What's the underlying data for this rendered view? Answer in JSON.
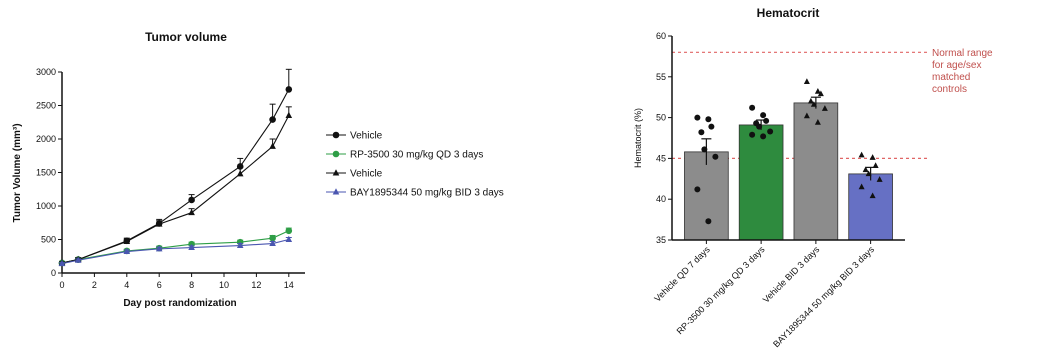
{
  "chart_data": [
    {
      "type": "line",
      "title": "Tumor volume",
      "xlabel": "Day post randomization",
      "ylabel": "Tumor Volume (mm³)",
      "xlim": [
        0,
        15
      ],
      "ylim": [
        0,
        3000
      ],
      "xticks": [
        "0",
        "2",
        "4",
        "6",
        "8",
        "10",
        "12",
        "14"
      ],
      "yticks": [
        "0",
        "500",
        "1000",
        "1500",
        "2000",
        "2500",
        "3000"
      ],
      "legend_position": "right",
      "series": [
        {
          "name": "Vehicle",
          "marker": "circle",
          "color": "#111111",
          "x": [
            0,
            1,
            4,
            6,
            8,
            11,
            13,
            14
          ],
          "values": [
            150,
            200,
            480,
            740,
            1090,
            1590,
            2290,
            2740
          ],
          "err": [
            20,
            30,
            40,
            60,
            80,
            120,
            230,
            300
          ]
        },
        {
          "name": "RP-3500 30 mg/kg QD 3 days",
          "marker": "circle",
          "color": "#2e9e46",
          "x": [
            0,
            1,
            4,
            6,
            8,
            11,
            13,
            14
          ],
          "values": [
            150,
            200,
            330,
            370,
            430,
            460,
            520,
            630
          ],
          "err": [
            15,
            20,
            25,
            30,
            30,
            30,
            40,
            40
          ]
        },
        {
          "name": "Vehicle",
          "marker": "triangle",
          "color": "#111111",
          "x": [
            0,
            1,
            4,
            6,
            8,
            11,
            13,
            14
          ],
          "values": [
            150,
            200,
            470,
            730,
            900,
            1480,
            1890,
            2350
          ],
          "err": [
            15,
            25,
            35,
            50,
            60,
            100,
            110,
            130
          ]
        },
        {
          "name": "BAY1895344 50 mg/kg BID 3 days",
          "marker": "triangle",
          "color": "#4a56b0",
          "x": [
            0,
            1,
            4,
            6,
            8,
            11,
            13,
            14
          ],
          "values": [
            140,
            190,
            320,
            360,
            380,
            410,
            440,
            500
          ],
          "err": [
            15,
            20,
            25,
            25,
            25,
            30,
            30,
            30
          ]
        }
      ]
    },
    {
      "type": "bar",
      "title": "Hematocrit",
      "xlabel": "",
      "ylabel": "Hematocrit (%)",
      "ylim": [
        35,
        60
      ],
      "yticks": [
        "35",
        "40",
        "45",
        "50",
        "55",
        "60"
      ],
      "categories": [
        "Vehicle QD 7 days",
        "RP-3500 30 mg/kg QD 3 days",
        "Vehicle BID 3 days",
        "BAY1895344 50 mg/kg BID 3 days"
      ],
      "values": [
        45.8,
        49.1,
        51.8,
        43.1
      ],
      "err": [
        1.6,
        0.6,
        0.7,
        0.8
      ],
      "bar_colors": [
        "#8c8c8c",
        "#2e8b3e",
        "#8c8c8c",
        "#6670c4"
      ],
      "points": [
        {
          "marker": "circle",
          "values": [
            50.0,
            49.8,
            48.9,
            48.2,
            46.1,
            45.2,
            41.2,
            37.3
          ]
        },
        {
          "marker": "circle",
          "values": [
            51.2,
            50.3,
            49.6,
            49.3,
            48.9,
            48.3,
            47.9,
            47.7
          ]
        },
        {
          "marker": "triangle",
          "values": [
            54.4,
            53.2,
            52.9,
            52.0,
            51.6,
            51.1,
            50.2,
            49.4
          ]
        },
        {
          "marker": "triangle",
          "values": [
            45.4,
            45.1,
            44.1,
            43.6,
            43.1,
            42.4,
            41.5,
            40.4
          ]
        }
      ],
      "reference_lines": [
        {
          "y": 58,
          "color": "#e06666",
          "style": "dashed"
        },
        {
          "y": 45,
          "color": "#e06666",
          "style": "dashed"
        }
      ],
      "annotation": "Normal range for age/sex matched controls"
    }
  ]
}
